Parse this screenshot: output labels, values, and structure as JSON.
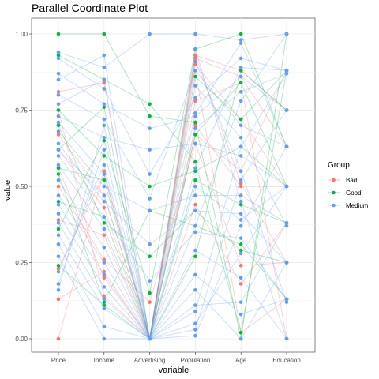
{
  "chart_data": {
    "type": "line",
    "title": "Parallel Coordinate Plot",
    "xlabel": "variable",
    "ylabel": "value",
    "categories": [
      "Price",
      "Income",
      "Advertising",
      "Population",
      "Age",
      "Education"
    ],
    "y_ticks": [
      "0.00",
      "0.25",
      "0.50",
      "0.75",
      "1.00"
    ],
    "ylim": [
      0,
      1
    ],
    "grid": true,
    "legend": {
      "title": "Group",
      "position": "right"
    },
    "series": [
      {
        "name": "Bad",
        "color": "#F8766D",
        "lines": [
          [
            0.13,
            0.22,
            0.0,
            0.93,
            0.88,
            0.75
          ],
          [
            0.0,
            0.55,
            0.0,
            0.92,
            0.86,
            0.63
          ],
          [
            0.81,
            0.84,
            0.0,
            0.7,
            0.5,
            0.5
          ],
          [
            0.62,
            0.43,
            0.0,
            0.44,
            0.18,
            0.38
          ],
          [
            0.5,
            0.26,
            0.12,
            0.64,
            0.24,
            0.25
          ],
          [
            0.23,
            0.54,
            0.0,
            0.88,
            0.02,
            0.13
          ],
          [
            0.75,
            0.14,
            0.0,
            0.67,
            0.55,
            0.88
          ],
          [
            0.39,
            0.34,
            0.0,
            0.78,
            0.84,
            0.0
          ],
          [
            0.67,
            0.47,
            0.0,
            0.9,
            0.72,
            0.5
          ],
          [
            0.56,
            0.2,
            0.0,
            0.93,
            0.51,
            0.25
          ]
        ]
      },
      {
        "name": "Good",
        "color": "#00BA38",
        "lines": [
          [
            1.0,
            1.0,
            0.73,
            0.71,
            0.0,
            1.0
          ],
          [
            0.93,
            0.85,
            0.77,
            0.58,
            0.02,
            0.88
          ],
          [
            0.75,
            0.6,
            0.5,
            0.55,
            0.63,
            0.5
          ],
          [
            0.7,
            0.38,
            0.27,
            0.42,
            0.29,
            0.25
          ],
          [
            0.54,
            0.12,
            0.42,
            0.37,
            0.31,
            0.13
          ],
          [
            0.36,
            0.65,
            0.15,
            0.95,
            1.0,
            0.63
          ],
          [
            0.24,
            0.11,
            0.0,
            0.27,
            0.88,
            0.75
          ],
          [
            0.62,
            0.76,
            0.0,
            0.52,
            0.44,
            0.38
          ],
          [
            0.56,
            0.52,
            0.0,
            0.67,
            0.84,
            0.5
          ],
          [
            0.45,
            0.4,
            0.0,
            0.86,
            0.72,
            0.88
          ]
        ]
      },
      {
        "name": "Medium",
        "color": "#619CFF",
        "lines": [
          [
            0.94,
            0.89,
            1.0,
            1.0,
            0.98,
            1.0
          ],
          [
            0.92,
            0.82,
            0.54,
            0.79,
            0.92,
            0.88
          ],
          [
            0.87,
            0.77,
            0.69,
            0.73,
            0.86,
            0.75
          ],
          [
            0.8,
            0.72,
            0.46,
            0.88,
            0.7,
            0.63
          ],
          [
            0.73,
            0.66,
            0.62,
            0.64,
            0.6,
            0.5
          ],
          [
            0.68,
            0.5,
            0.42,
            0.47,
            0.47,
            0.38
          ],
          [
            0.64,
            0.45,
            0.31,
            0.42,
            0.41,
            0.25
          ],
          [
            0.6,
            0.4,
            0.19,
            0.35,
            0.33,
            0.13
          ],
          [
            0.57,
            0.36,
            0.0,
            0.29,
            0.2,
            0.0
          ],
          [
            0.52,
            0.3,
            0.0,
            0.21,
            0.08,
            0.13
          ],
          [
            0.47,
            0.25,
            0.0,
            0.16,
            0.0,
            0.25
          ],
          [
            0.44,
            0.21,
            0.0,
            0.11,
            0.12,
            0.38
          ],
          [
            0.41,
            0.17,
            0.0,
            0.05,
            0.28,
            0.5
          ],
          [
            0.38,
            0.13,
            0.0,
            0.01,
            0.37,
            0.63
          ],
          [
            0.34,
            0.1,
            0.0,
            0.03,
            0.52,
            0.75
          ],
          [
            0.31,
            0.04,
            0.0,
            0.09,
            0.63,
            0.87
          ],
          [
            0.27,
            0.0,
            0.0,
            0.37,
            0.78,
            1.0
          ],
          [
            0.22,
            0.57,
            0.0,
            0.56,
            0.89,
            0.88
          ],
          [
            0.18,
            0.62,
            0.0,
            0.74,
            0.97,
            0.63
          ],
          [
            0.16,
            0.7,
            0.0,
            0.83,
            0.66,
            0.37
          ],
          [
            0.77,
            0.85,
            0.0,
            0.91,
            0.55,
            0.12
          ],
          [
            0.85,
            0.93,
            0.0,
            0.95,
            0.45,
            0.0
          ],
          [
            0.62,
            0.47,
            0.0,
            0.5,
            0.39,
            0.5
          ],
          [
            0.71,
            0.54,
            0.0,
            0.69,
            0.81,
            0.87
          ]
        ]
      }
    ]
  }
}
